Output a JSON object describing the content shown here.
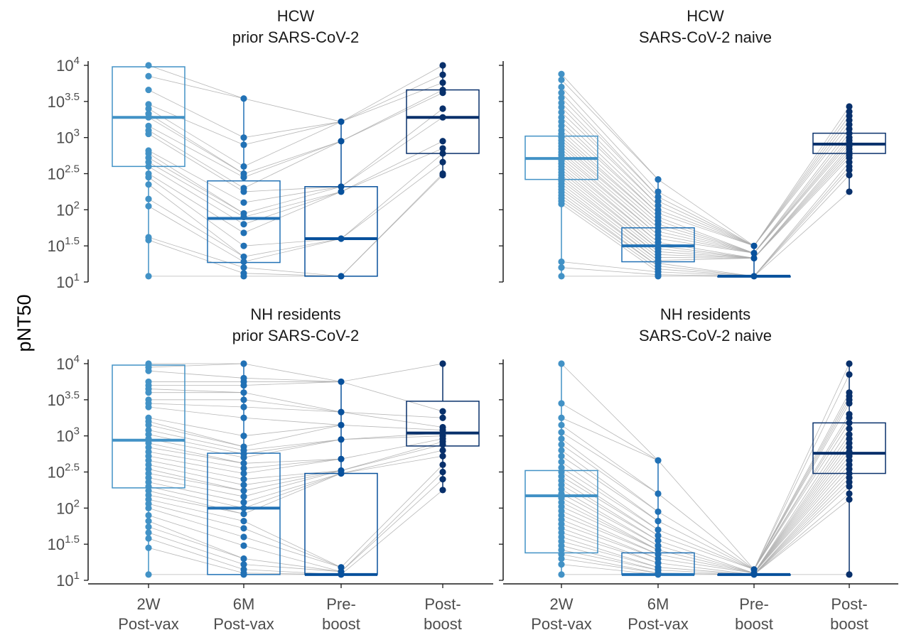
{
  "chart_data": {
    "type": "box",
    "y_axis": {
      "title": "pNT50",
      "scale": "log10",
      "range_log10": [
        1,
        4
      ],
      "ticks": [
        {
          "value_log10": 1,
          "base": "10",
          "exp": "1"
        },
        {
          "value_log10": 1.5,
          "base": "10",
          "exp": "1.5"
        },
        {
          "value_log10": 2,
          "base": "10",
          "exp": "2"
        },
        {
          "value_log10": 2.5,
          "base": "10",
          "exp": "2.5"
        },
        {
          "value_log10": 3,
          "base": "10",
          "exp": "3"
        },
        {
          "value_log10": 3.5,
          "base": "10",
          "exp": "3.5"
        },
        {
          "value_log10": 4,
          "base": "10",
          "exp": "4"
        }
      ]
    },
    "x_categories": [
      [
        "2W",
        "Post-vax"
      ],
      [
        "6M",
        "Post-vax"
      ],
      [
        "Pre-",
        "boost"
      ],
      [
        "Post-",
        "boost"
      ]
    ],
    "group_colors": [
      "#4292c6",
      "#2171b5",
      "#08519c",
      "#08306b"
    ],
    "line_color": "#aaaaaa",
    "panels": [
      {
        "title": [
          "HCW",
          "prior SARS-CoV-2"
        ],
        "boxes": [
          {
            "q1": 2.6,
            "median": 3.28,
            "q3": 3.98,
            "low": 1.08,
            "high": 4.0
          },
          {
            "q1": 1.27,
            "median": 1.88,
            "q3": 2.4,
            "low": 1.08,
            "high": 3.54
          },
          {
            "q1": 1.08,
            "median": 1.6,
            "q3": 2.32,
            "low": 1.08,
            "high": 3.22
          },
          {
            "q1": 2.78,
            "median": 3.28,
            "q3": 3.66,
            "low": 2.5,
            "high": 4.0
          }
        ],
        "points": [
          [
            4.0,
            3.85,
            3.66,
            3.46,
            3.4,
            3.33,
            3.28,
            3.16,
            3.1,
            3.05,
            2.82,
            2.78,
            2.72,
            2.66,
            2.6,
            2.5,
            2.45,
            2.35,
            2.15,
            2.05,
            1.62,
            1.58,
            1.08
          ],
          [
            3.54,
            3.0,
            2.9,
            2.6,
            2.5,
            2.45,
            2.3,
            2.25,
            2.1,
            1.95,
            1.9,
            1.8,
            1.68,
            1.5,
            1.35,
            1.28,
            1.2,
            1.12,
            1.08
          ],
          [
            3.22,
            2.95,
            2.32,
            2.25,
            1.6,
            1.08
          ],
          [
            4.0,
            3.87,
            3.76,
            3.66,
            3.62,
            3.4,
            3.28,
            2.95,
            2.85,
            2.78,
            2.66,
            2.5,
            2.48
          ]
        ]
      },
      {
        "title": [
          "HCW",
          "SARS-CoV-2 naive"
        ],
        "boxes": [
          {
            "q1": 2.42,
            "median": 2.71,
            "q3": 3.02,
            "low": 1.08,
            "high": 3.88
          },
          {
            "q1": 1.28,
            "median": 1.5,
            "q3": 1.75,
            "low": 1.08,
            "high": 2.42
          },
          {
            "q1": 1.08,
            "median": 1.08,
            "q3": 1.08,
            "low": 1.08,
            "high": 1.5
          },
          {
            "q1": 2.78,
            "median": 2.91,
            "q3": 3.06,
            "low": 2.25,
            "high": 3.43
          }
        ],
        "points": [
          [
            3.88,
            3.8,
            3.7,
            3.62,
            3.55,
            3.48,
            3.42,
            3.35,
            3.28,
            3.22,
            3.16,
            3.1,
            3.05,
            3.0,
            2.96,
            2.92,
            2.88,
            2.84,
            2.8,
            2.76,
            2.72,
            2.68,
            2.64,
            2.6,
            2.56,
            2.52,
            2.48,
            2.44,
            2.4,
            2.36,
            2.32,
            2.28,
            2.24,
            2.2,
            2.16,
            2.12,
            2.08,
            1.28,
            1.2,
            1.08
          ],
          [
            2.42,
            2.25,
            2.18,
            2.12,
            2.06,
            2.0,
            1.95,
            1.9,
            1.85,
            1.8,
            1.75,
            1.7,
            1.65,
            1.6,
            1.55,
            1.5,
            1.46,
            1.42,
            1.38,
            1.34,
            1.3,
            1.26,
            1.22,
            1.18,
            1.14,
            1.1,
            1.08
          ],
          [
            1.5,
            1.4,
            1.33,
            1.08
          ],
          [
            3.43,
            3.36,
            3.3,
            3.24,
            3.18,
            3.12,
            3.06,
            3.0,
            2.96,
            2.92,
            2.88,
            2.84,
            2.8,
            2.76,
            2.72,
            2.66,
            2.6,
            2.55,
            2.48,
            2.25
          ]
        ]
      },
      {
        "title": [
          "NH residents",
          "prior SARS-CoV-2"
        ],
        "boxes": [
          {
            "q1": 2.28,
            "median": 2.94,
            "q3": 3.98,
            "low": 1.08,
            "high": 4.0
          },
          {
            "q1": 1.08,
            "median": 2.0,
            "q3": 2.76,
            "low": 1.08,
            "high": 4.0
          },
          {
            "q1": 1.08,
            "median": 1.08,
            "q3": 2.48,
            "low": 1.08,
            "high": 3.75
          },
          {
            "q1": 2.86,
            "median": 3.04,
            "q3": 3.48,
            "low": 2.25,
            "high": 4.0
          }
        ],
        "points": [
          [
            4.0,
            3.95,
            3.9,
            3.75,
            3.7,
            3.65,
            3.6,
            3.5,
            3.45,
            3.4,
            3.25,
            3.2,
            3.15,
            3.08,
            3.02,
            2.96,
            2.9,
            2.84,
            2.78,
            2.72,
            2.66,
            2.6,
            2.54,
            2.48,
            2.42,
            2.36,
            2.3,
            2.24,
            2.18,
            2.12,
            2.06,
            2.0,
            1.9,
            1.82,
            1.74,
            1.66,
            1.58,
            1.45,
            1.08
          ],
          [
            4.0,
            3.8,
            3.75,
            3.7,
            3.6,
            3.5,
            3.4,
            3.25,
            3.0,
            2.85,
            2.8,
            2.75,
            2.7,
            2.62,
            2.55,
            2.48,
            2.4,
            2.32,
            2.24,
            2.16,
            2.08,
            2.0,
            1.92,
            1.82,
            1.72,
            1.6,
            1.48,
            1.3,
            1.22,
            1.15,
            1.1,
            1.08
          ],
          [
            3.75,
            3.33,
            3.15,
            2.95,
            2.68,
            2.52,
            2.48,
            1.18,
            1.12,
            1.08
          ],
          [
            4.0,
            3.34,
            3.25,
            3.12,
            3.08,
            3.04,
            3.0,
            2.96,
            2.92,
            2.88,
            2.8,
            2.72,
            2.6,
            2.5,
            2.4,
            2.25
          ]
        ]
      },
      {
        "title": [
          "NH residents",
          "SARS-CoV-2 naive"
        ],
        "boxes": [
          {
            "q1": 1.38,
            "median": 2.17,
            "q3": 2.52,
            "low": 1.08,
            "high": 4.0
          },
          {
            "q1": 1.08,
            "median": 1.08,
            "q3": 1.38,
            "low": 1.08,
            "high": 2.66
          },
          {
            "q1": 1.08,
            "median": 1.08,
            "q3": 1.08,
            "low": 1.08,
            "high": 1.15
          },
          {
            "q1": 2.48,
            "median": 2.76,
            "q3": 3.18,
            "low": 1.08,
            "high": 4.0
          }
        ],
        "points": [
          [
            4.0,
            3.45,
            3.25,
            3.15,
            3.05,
            2.96,
            2.88,
            2.8,
            2.72,
            2.64,
            2.56,
            2.5,
            2.44,
            2.38,
            2.32,
            2.26,
            2.2,
            2.14,
            2.08,
            2.02,
            1.96,
            1.9,
            1.84,
            1.78,
            1.72,
            1.66,
            1.6,
            1.54,
            1.48,
            1.42,
            1.36,
            1.3,
            1.22,
            1.08
          ],
          [
            2.66,
            2.2,
            1.95,
            1.82,
            1.7,
            1.62,
            1.55,
            1.48,
            1.42,
            1.36,
            1.3,
            1.24,
            1.18,
            1.14,
            1.1,
            1.08
          ],
          [
            1.15,
            1.1,
            1.08
          ],
          [
            4.0,
            3.85,
            3.6,
            3.55,
            3.5,
            3.45,
            3.3,
            3.25,
            3.18,
            3.1,
            3.02,
            2.96,
            2.9,
            2.84,
            2.78,
            2.72,
            2.66,
            2.6,
            2.54,
            2.48,
            2.42,
            2.36,
            2.3,
            2.2,
            2.12,
            1.08
          ]
        ]
      }
    ]
  }
}
